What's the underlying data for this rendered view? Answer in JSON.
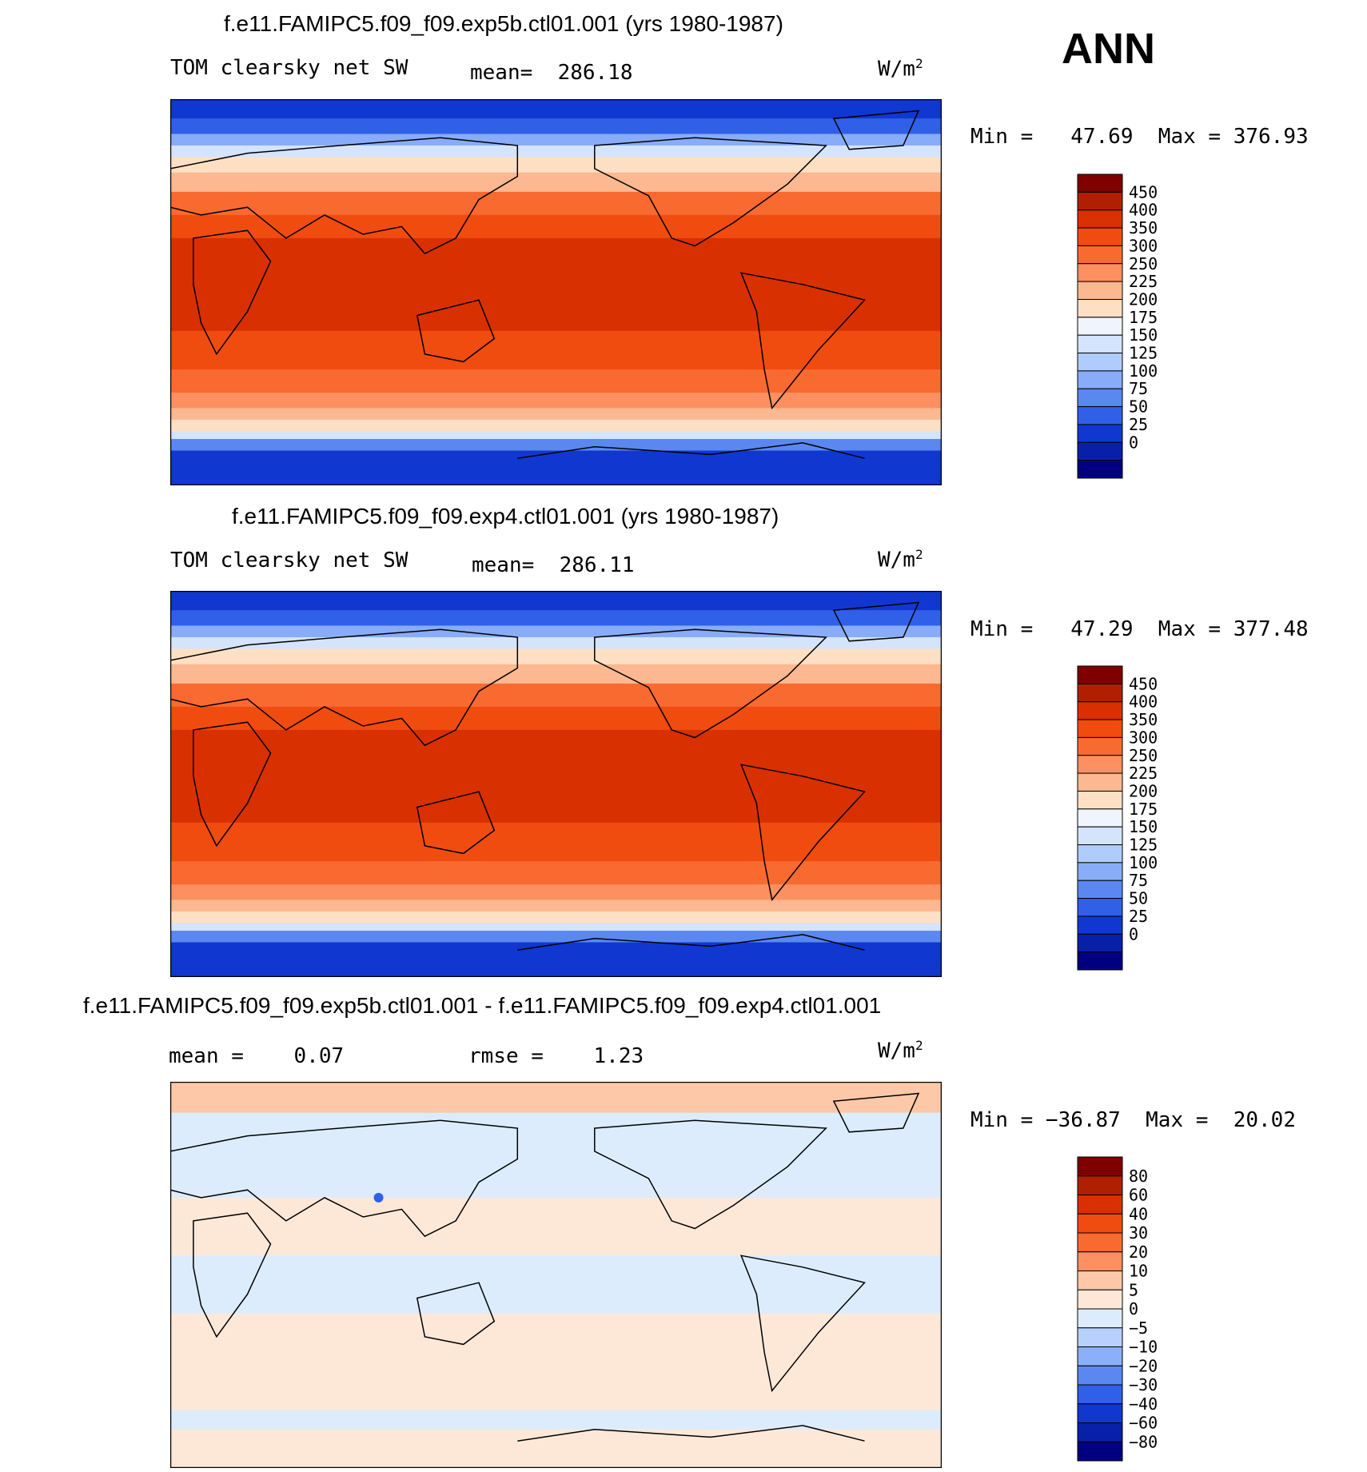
{
  "season": "ANN",
  "panels": [
    {
      "title": "f.e11.FAMIPC5.f09_f09.exp5b.ctl01.001 (yrs 1980-1987)",
      "left_label": "TOM clearsky net SW",
      "center_label": "mean=  286.18",
      "units_base": "W/m",
      "units_exp": "2",
      "minmax": "Min =   47.69  Max = 376.93",
      "colorbar_levels": [
        "450",
        "400",
        "350",
        "300",
        "250",
        "225",
        "200",
        "175",
        "150",
        "125",
        "100",
        "75",
        "50",
        "25",
        "0"
      ],
      "colorbar_colors": [
        "#800000",
        "#b01f00",
        "#d83000",
        "#f04c10",
        "#f86a30",
        "#fc9060",
        "#fcb890",
        "#fde0c4",
        "#f0f4fc",
        "#d4e4fc",
        "#b0ccfc",
        "#88acf8",
        "#5a88f0",
        "#3060e8",
        "#1038d0",
        "#0820a8",
        "#000080"
      ]
    },
    {
      "title": "f.e11.FAMIPC5.f09_f09.exp4.ctl01.001 (yrs 1980-1987)",
      "left_label": "TOM clearsky net SW",
      "center_label": "mean=  286.11",
      "units_base": "W/m",
      "units_exp": "2",
      "minmax": "Min =   47.29  Max = 377.48",
      "colorbar_levels": [
        "450",
        "400",
        "350",
        "300",
        "250",
        "225",
        "200",
        "175",
        "150",
        "125",
        "100",
        "75",
        "50",
        "25",
        "0"
      ],
      "colorbar_colors": [
        "#800000",
        "#b01f00",
        "#d83000",
        "#f04c10",
        "#f86a30",
        "#fc9060",
        "#fcb890",
        "#fde0c4",
        "#f0f4fc",
        "#d4e4fc",
        "#b0ccfc",
        "#88acf8",
        "#5a88f0",
        "#3060e8",
        "#1038d0",
        "#0820a8",
        "#000080"
      ]
    },
    {
      "title": "f.e11.FAMIPC5.f09_f09.exp5b.ctl01.001 - f.e11.FAMIPC5.f09_f09.exp4.ctl01.001",
      "left_label": "mean =    0.07",
      "center_label": "rmse =    1.23",
      "units_base": "W/m",
      "units_exp": "2",
      "minmax": "Min = −36.87  Max =  20.02",
      "colorbar_levels": [
        "80",
        "60",
        "40",
        "30",
        "20",
        "10",
        "5",
        "0",
        "−5",
        "−10",
        "−20",
        "−30",
        "−40",
        "−60",
        "−80"
      ],
      "colorbar_colors": [
        "#800000",
        "#b01f00",
        "#d83000",
        "#f04c10",
        "#f86a30",
        "#fc9060",
        "#fcc8a8",
        "#fde8d8",
        "#dcecfc",
        "#b8d0fc",
        "#8cb0f8",
        "#5a88f0",
        "#3060e8",
        "#1038d0",
        "#0820a8",
        "#000080"
      ]
    }
  ],
  "chart_data": [
    {
      "type": "heatmap",
      "title": "f.e11.FAMIPC5.f09_f09.exp5b.ctl01.001 (yrs 1980-1987)",
      "variable": "TOM clearsky net SW",
      "units": "W/m2",
      "mean": 286.18,
      "min": 47.69,
      "max": 376.93,
      "contour_levels": [
        0,
        25,
        50,
        75,
        100,
        125,
        150,
        175,
        200,
        225,
        250,
        300,
        350,
        400,
        450
      ]
    },
    {
      "type": "heatmap",
      "title": "f.e11.FAMIPC5.f09_f09.exp4.ctl01.001 (yrs 1980-1987)",
      "variable": "TOM clearsky net SW",
      "units": "W/m2",
      "mean": 286.11,
      "min": 47.29,
      "max": 377.48,
      "contour_levels": [
        0,
        25,
        50,
        75,
        100,
        125,
        150,
        175,
        200,
        225,
        250,
        300,
        350,
        400,
        450
      ]
    },
    {
      "type": "heatmap",
      "title": "f.e11.FAMIPC5.f09_f09.exp5b.ctl01.001 - f.e11.FAMIPC5.f09_f09.exp4.ctl01.001",
      "units": "W/m2",
      "mean": 0.07,
      "rmse": 1.23,
      "min": -36.87,
      "max": 20.02,
      "contour_levels": [
        -80,
        -60,
        -40,
        -30,
        -20,
        -10,
        -5,
        0,
        5,
        10,
        20,
        30,
        40,
        60,
        80
      ]
    }
  ]
}
